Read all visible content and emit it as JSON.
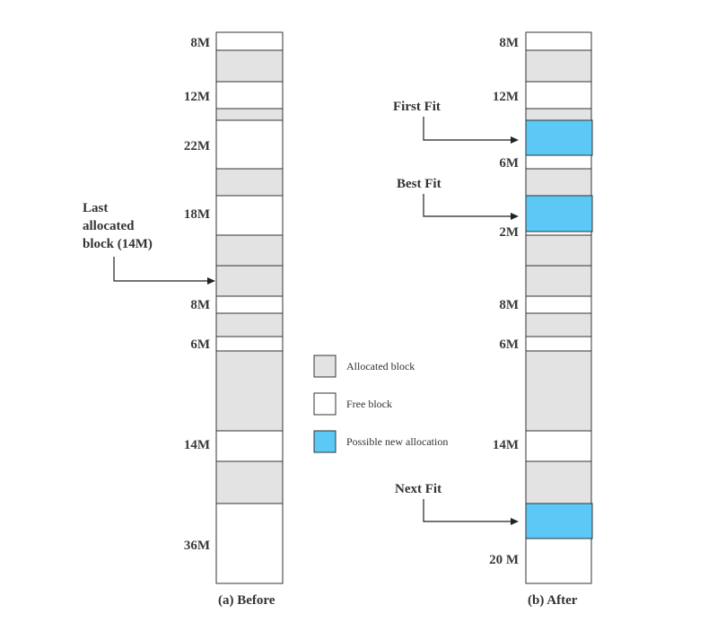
{
  "before": {
    "caption": "(a) Before",
    "blocks": [
      {
        "type": "free",
        "label": "8M"
      },
      {
        "type": "allocated",
        "label": ""
      },
      {
        "type": "free",
        "label": "12M"
      },
      {
        "type": "allocated",
        "label": ""
      },
      {
        "type": "free",
        "label": "22M"
      },
      {
        "type": "allocated",
        "label": ""
      },
      {
        "type": "free",
        "label": "18M"
      },
      {
        "type": "allocated",
        "label": ""
      },
      {
        "type": "allocated",
        "label": ""
      },
      {
        "type": "free",
        "label": "8M"
      },
      {
        "type": "allocated",
        "label": ""
      },
      {
        "type": "free",
        "label": "6M"
      },
      {
        "type": "allocated",
        "label": ""
      },
      {
        "type": "free",
        "label": "14M"
      },
      {
        "type": "allocated",
        "label": ""
      },
      {
        "type": "free",
        "label": "36M"
      }
    ],
    "pointer": {
      "lines": [
        "Last",
        "allocated",
        "block (14M)"
      ]
    }
  },
  "after": {
    "caption": "(b) After",
    "blocks": [
      {
        "type": "free",
        "label": "8M"
      },
      {
        "type": "allocated",
        "label": ""
      },
      {
        "type": "free",
        "label": "12M"
      },
      {
        "type": "new",
        "label": ""
      },
      {
        "type": "free",
        "label": "6M"
      },
      {
        "type": "allocated",
        "label": ""
      },
      {
        "type": "new",
        "label": ""
      },
      {
        "type": "free",
        "label": "2M"
      },
      {
        "type": "allocated",
        "label": ""
      },
      {
        "type": "allocated",
        "label": ""
      },
      {
        "type": "free",
        "label": "8M"
      },
      {
        "type": "allocated",
        "label": ""
      },
      {
        "type": "free",
        "label": "6M"
      },
      {
        "type": "allocated",
        "label": ""
      },
      {
        "type": "free",
        "label": "14M"
      },
      {
        "type": "allocated",
        "label": ""
      },
      {
        "type": "new",
        "label": ""
      },
      {
        "type": "free",
        "label": "20 M"
      }
    ],
    "fits": [
      "First Fit",
      "Best Fit",
      "Next Fit"
    ]
  },
  "legend": [
    {
      "type": "allocated",
      "label": "Allocated block"
    },
    {
      "type": "free",
      "label": "Free block"
    },
    {
      "type": "new",
      "label": "Possible new allocation"
    }
  ],
  "colors": {
    "allocated": "#e3e3e3",
    "free": "#ffffff",
    "new": "#5bc8f5",
    "stroke": "#333333"
  }
}
